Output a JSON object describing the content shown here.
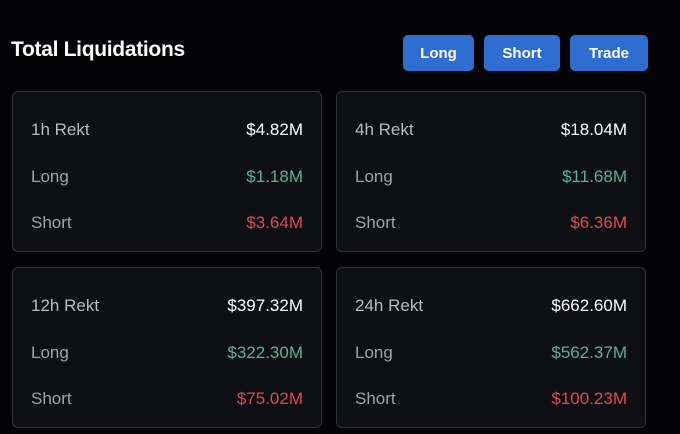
{
  "header": {
    "title": "Total Liquidations",
    "buttons": {
      "long": "Long",
      "short": "Short",
      "trade": "Trade"
    }
  },
  "colors": {
    "long": "#57b38e",
    "short": "#e0494a",
    "button": "#2f6ed1"
  },
  "cards": [
    {
      "label": "1h Rekt",
      "total": "$4.82M",
      "long_label": "Long",
      "long": "$1.18M",
      "short_label": "Short",
      "short": "$3.64M"
    },
    {
      "label": "4h Rekt",
      "total": "$18.04M",
      "long_label": "Long",
      "long": "$11.68M",
      "short_label": "Short",
      "short": "$6.36M"
    },
    {
      "label": "12h Rekt",
      "total": "$397.32M",
      "long_label": "Long",
      "long": "$322.30M",
      "short_label": "Short",
      "short": "$75.02M"
    },
    {
      "label": "24h Rekt",
      "total": "$662.60M",
      "long_label": "Long",
      "long": "$562.37M",
      "short_label": "Short",
      "short": "$100.23M"
    }
  ]
}
